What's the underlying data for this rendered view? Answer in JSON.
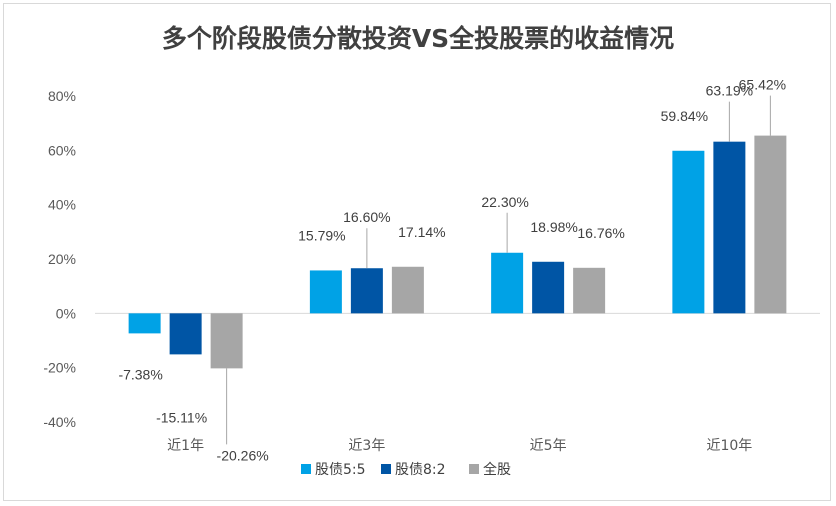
{
  "chart_data": {
    "type": "bar",
    "title": "多个阶段股债分散投资VS全投股票的收益情况",
    "categories": [
      "近1年",
      "近3年",
      "近5年",
      "近10年"
    ],
    "series": [
      {
        "name": "股债5:5",
        "color": "#00a2e6",
        "values": [
          -7.38,
          15.79,
          22.3,
          59.84
        ],
        "labels": [
          "-7.38%",
          "15.79%",
          "22.30%",
          "59.84%"
        ]
      },
      {
        "name": "股债8:2",
        "color": "#0055a5",
        "values": [
          -15.11,
          16.6,
          18.98,
          63.19
        ],
        "labels": [
          "-15.11%",
          "16.60%",
          "18.98%",
          "63.19%"
        ]
      },
      {
        "name": "全股",
        "color": "#a6a6a6",
        "values": [
          -20.26,
          17.14,
          16.76,
          65.42
        ],
        "labels": [
          "-20.26%",
          "17.14%",
          "16.76%",
          "65.42%"
        ]
      }
    ],
    "yticks": [
      "80%",
      "60%",
      "40%",
      "20%",
      "0%",
      "-20%",
      "-40%"
    ],
    "ylim": [
      -40,
      80
    ],
    "xlabel": "",
    "ylabel": "",
    "grid": false,
    "legend": "bottom"
  }
}
